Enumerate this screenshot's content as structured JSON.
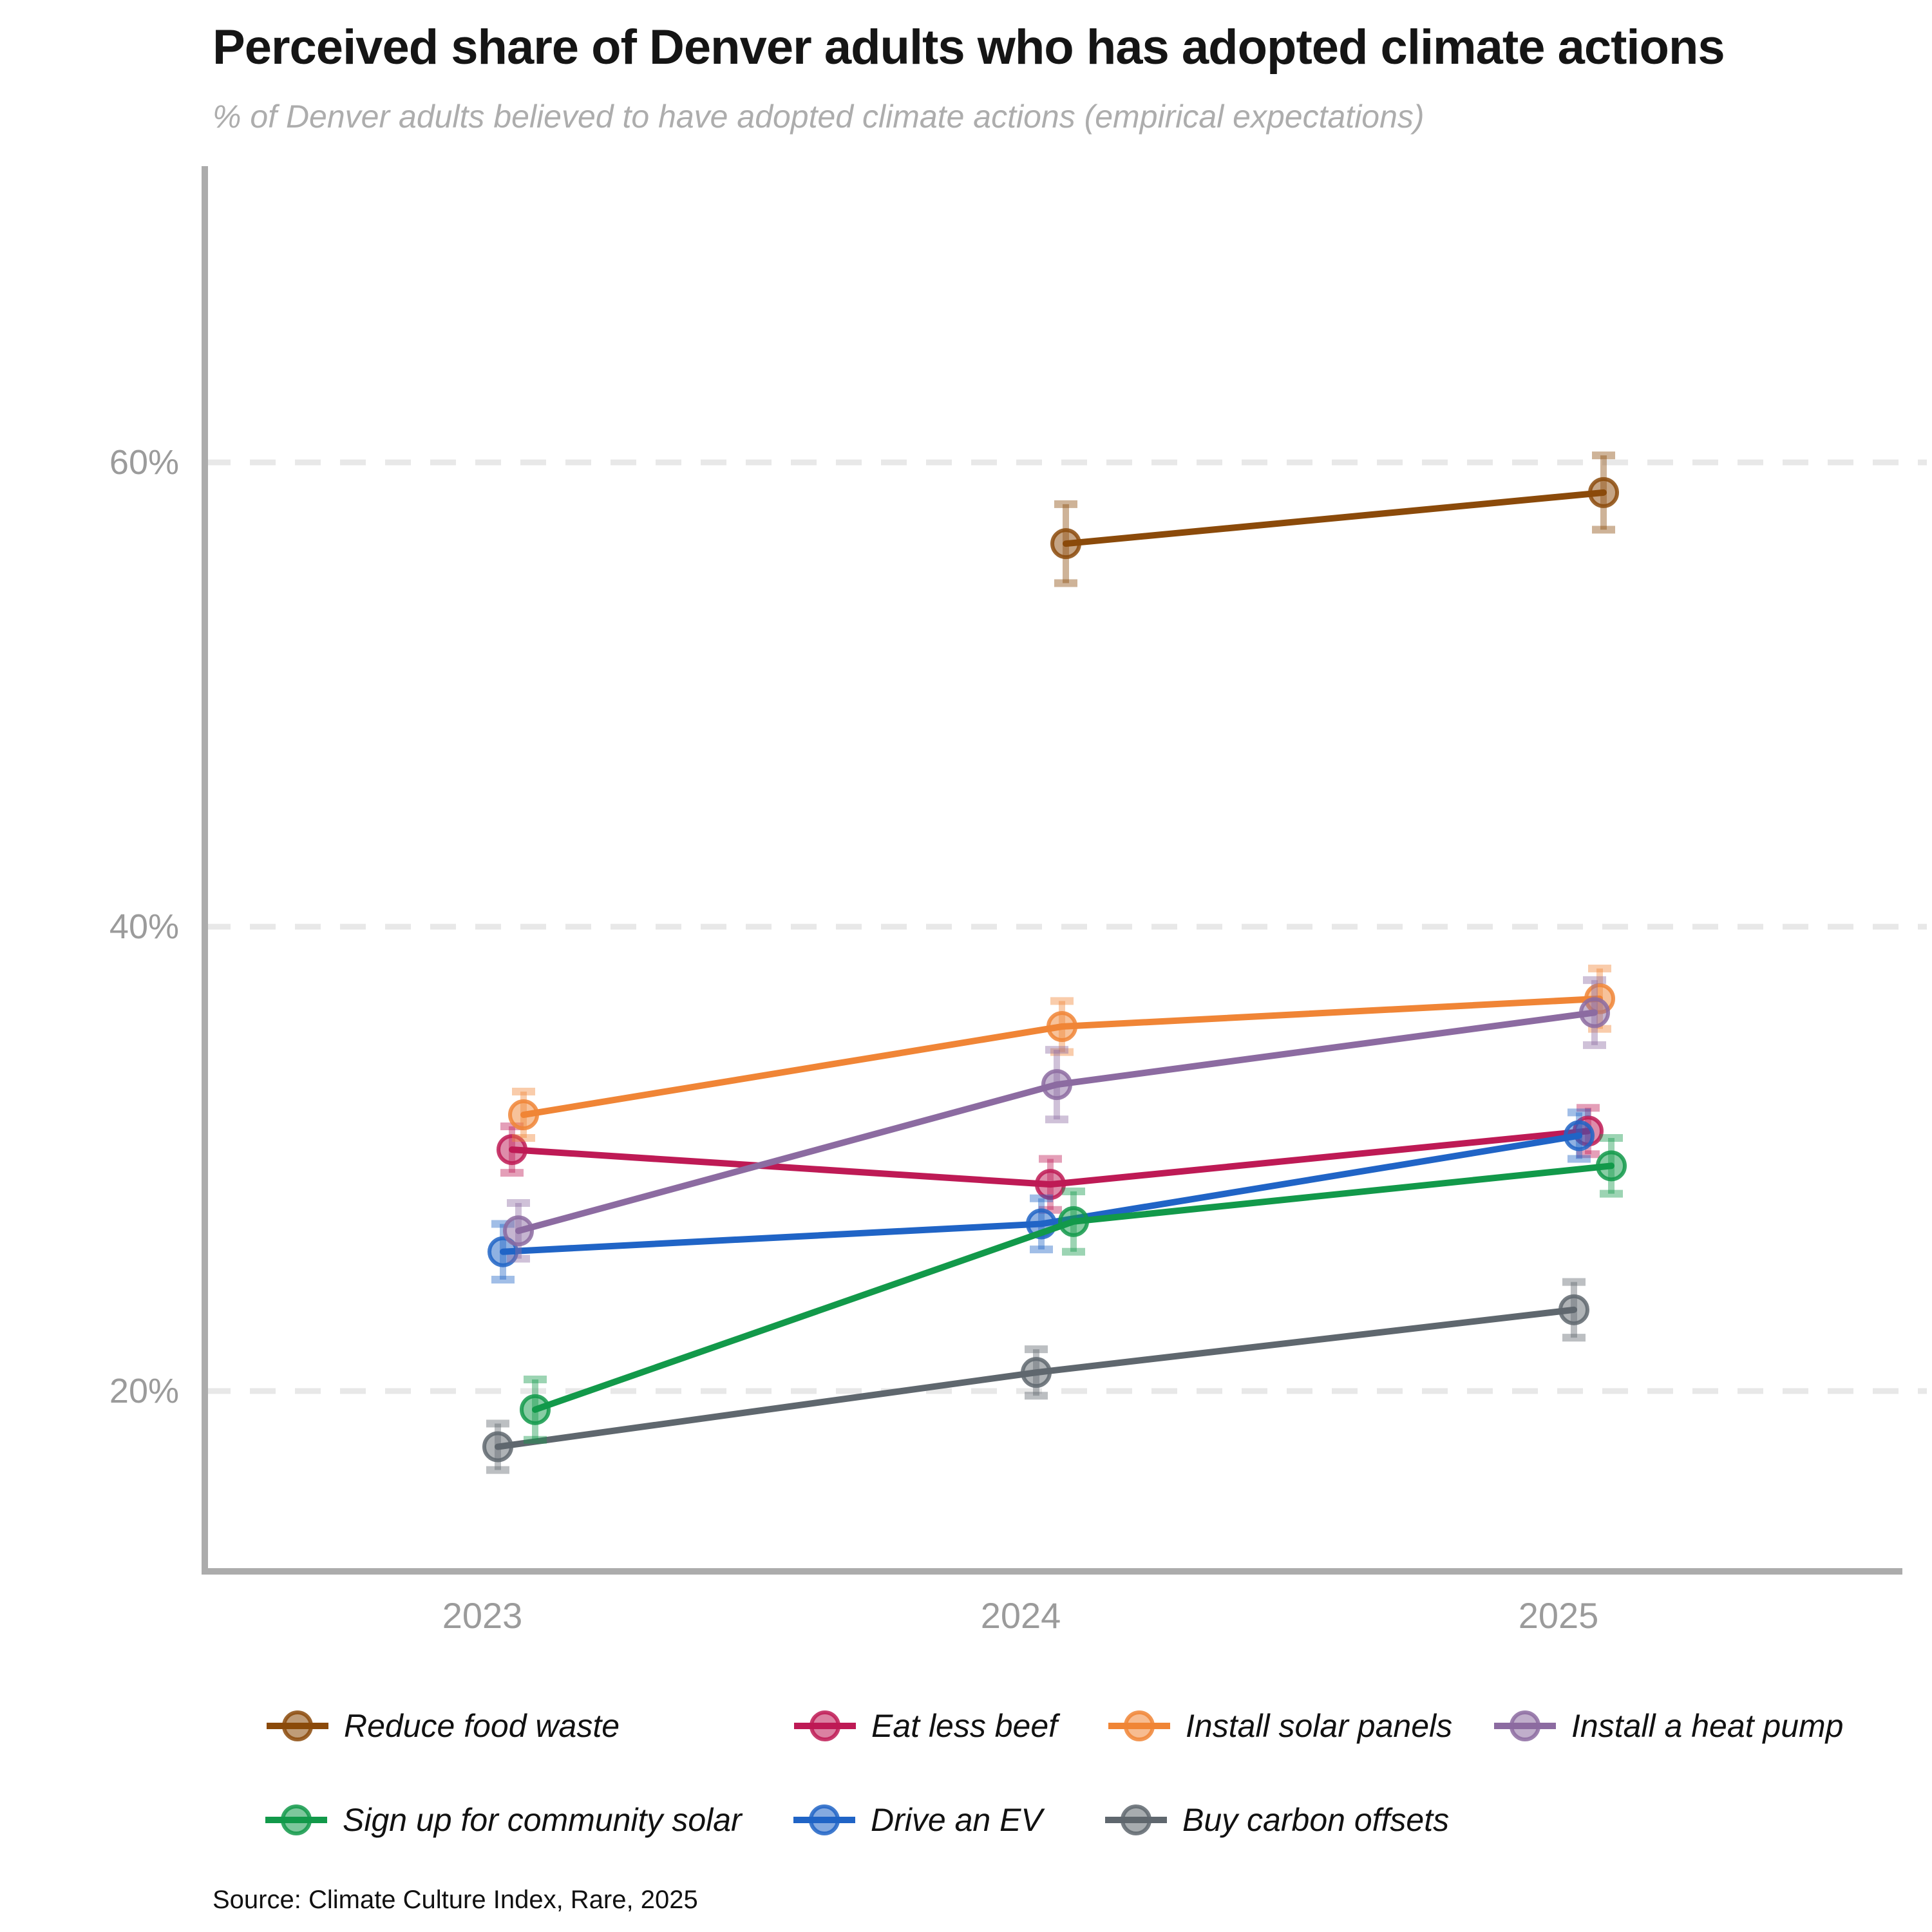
{
  "header": {
    "title": "Perceived share of Denver adults who has adopted climate actions",
    "subtitle": "% of Denver adults believed to have adopted climate actions (empirical expectations)"
  },
  "source": "Source: Climate Culture Index, Rare, 2025",
  "chart_data": {
    "type": "line",
    "x_labels": [
      "2023",
      "2024",
      "2025"
    ],
    "y_ticks": [
      {
        "label": "20%",
        "value": 20
      },
      {
        "label": "40%",
        "value": 40
      },
      {
        "label": "60%",
        "value": 60
      }
    ],
    "ylim": [
      12.2,
      72.8
    ],
    "grid": "horizontal-dashed",
    "legend_position": "bottom",
    "error_bars": true,
    "axis_color": "#acacac",
    "grid_color": "#e8e8e8",
    "tick_label_color": "#9b9b9b",
    "series": [
      {
        "name": "Reduce food waste",
        "color": "#8b4a0a",
        "dodge": 70,
        "values": [
          null,
          56.5,
          58.7
        ],
        "errors": [
          null,
          1.7,
          1.6
        ]
      },
      {
        "name": "Eat less beef",
        "color": "#be1a55",
        "dodge": 46,
        "values": [
          30.4,
          28.9,
          31.2
        ],
        "errors": [
          1.0,
          1.1,
          1.0
        ]
      },
      {
        "name": "Install solar panels",
        "color": "#f08536",
        "dodge": 64,
        "values": [
          31.9,
          35.7,
          36.9
        ],
        "errors": [
          1.0,
          1.1,
          1.3
        ]
      },
      {
        "name": "Install a heat pump",
        "color": "#8c6ba1",
        "dodge": 56,
        "values": [
          26.9,
          33.2,
          36.3
        ],
        "errors": [
          1.2,
          1.5,
          1.4
        ]
      },
      {
        "name": "Sign up for community solar",
        "color": "#12994a",
        "dodge": 82,
        "values": [
          19.2,
          27.3,
          29.7
        ],
        "errors": [
          1.3,
          1.3,
          1.2
        ]
      },
      {
        "name": "Drive an EV",
        "color": "#2064c6",
        "dodge": 32,
        "values": [
          26.0,
          27.2,
          31.0
        ],
        "errors": [
          1.2,
          1.1,
          1.0
        ]
      },
      {
        "name": "Buy carbon offsets",
        "color": "#5f676e",
        "dodge": 24,
        "values": [
          17.6,
          20.8,
          23.5
        ],
        "errors": [
          1.0,
          1.0,
          1.2
        ]
      }
    ]
  },
  "legend": {
    "row1": [
      "Reduce food waste",
      "Eat less beef",
      "Install solar panels",
      "Install a heat pump"
    ],
    "row2": [
      "Sign up for community solar",
      "Drive an EV",
      "Buy carbon offsets"
    ]
  }
}
